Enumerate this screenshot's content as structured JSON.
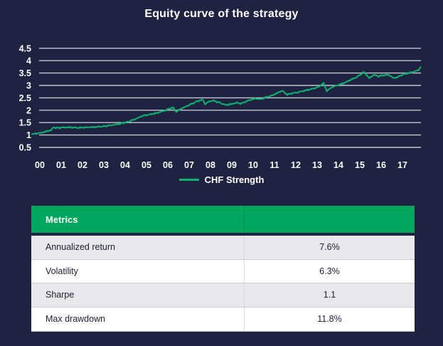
{
  "page": {
    "background": "#1f2240"
  },
  "chart_data": {
    "type": "line",
    "title": "Equity curve of the strategy",
    "xlabel": "",
    "ylabel": "",
    "x_tick_labels": [
      "00",
      "01",
      "02",
      "03",
      "04",
      "05",
      "06",
      "07",
      "08",
      "09",
      "10",
      "11",
      "12",
      "13",
      "14",
      "15",
      "16",
      "17"
    ],
    "y_ticks": [
      4.5,
      4,
      3.5,
      3,
      2.5,
      2,
      1.5,
      1,
      0.5
    ],
    "y_range": [
      0.5,
      4.5
    ],
    "x_unit": "years since 2000",
    "grid": true,
    "grid_color": "#c6c8d2",
    "legend_position": "bottom-center",
    "series": [
      {
        "name": "CHF Strength",
        "color": "#0db170",
        "points": [
          [
            -0.37,
            1.03
          ],
          [
            -0.15,
            1.06
          ],
          [
            0,
            1.08
          ],
          [
            0.2,
            1.12
          ],
          [
            0.45,
            1.18
          ],
          [
            0.55,
            1.19
          ],
          [
            0.62,
            1.31
          ],
          [
            0.8,
            1.28
          ],
          [
            1.0,
            1.3
          ],
          [
            1.4,
            1.31
          ],
          [
            1.8,
            1.29
          ],
          [
            2.2,
            1.31
          ],
          [
            2.6,
            1.32
          ],
          [
            3.0,
            1.35
          ],
          [
            3.4,
            1.4
          ],
          [
            3.8,
            1.46
          ],
          [
            4.2,
            1.55
          ],
          [
            4.5,
            1.65
          ],
          [
            4.8,
            1.77
          ],
          [
            5.1,
            1.82
          ],
          [
            5.45,
            1.88
          ],
          [
            5.8,
            1.97
          ],
          [
            6.1,
            2.07
          ],
          [
            6.25,
            2.1
          ],
          [
            6.4,
            1.93
          ],
          [
            6.6,
            2.05
          ],
          [
            6.85,
            2.15
          ],
          [
            7.1,
            2.25
          ],
          [
            7.35,
            2.35
          ],
          [
            7.63,
            2.43
          ],
          [
            7.75,
            2.25
          ],
          [
            7.95,
            2.36
          ],
          [
            8.15,
            2.38
          ],
          [
            8.45,
            2.3
          ],
          [
            8.7,
            2.21
          ],
          [
            9.0,
            2.25
          ],
          [
            9.2,
            2.3
          ],
          [
            9.45,
            2.27
          ],
          [
            9.8,
            2.4
          ],
          [
            10.1,
            2.47
          ],
          [
            10.35,
            2.44
          ],
          [
            10.6,
            2.52
          ],
          [
            10.9,
            2.6
          ],
          [
            11.15,
            2.7
          ],
          [
            11.35,
            2.79
          ],
          [
            11.6,
            2.63
          ],
          [
            11.85,
            2.69
          ],
          [
            12.1,
            2.72
          ],
          [
            12.5,
            2.81
          ],
          [
            12.8,
            2.87
          ],
          [
            13.05,
            2.93
          ],
          [
            13.3,
            3.09
          ],
          [
            13.45,
            2.78
          ],
          [
            13.7,
            2.93
          ],
          [
            14.0,
            3.02
          ],
          [
            14.3,
            3.11
          ],
          [
            14.6,
            3.24
          ],
          [
            14.85,
            3.33
          ],
          [
            15.05,
            3.45
          ],
          [
            15.2,
            3.54
          ],
          [
            15.45,
            3.29
          ],
          [
            15.65,
            3.43
          ],
          [
            15.85,
            3.37
          ],
          [
            16.1,
            3.41
          ],
          [
            16.35,
            3.43
          ],
          [
            16.6,
            3.29
          ],
          [
            16.8,
            3.35
          ],
          [
            17.05,
            3.45
          ],
          [
            17.35,
            3.51
          ],
          [
            17.6,
            3.57
          ],
          [
            17.75,
            3.62
          ],
          [
            17.85,
            3.74
          ]
        ]
      }
    ]
  },
  "table": {
    "header": "Metrics",
    "header_bg": "#00a55e",
    "header_text_color": "#ffffff",
    "row_bg_odd": "#e8e8eb",
    "row_bg_even": "#ffffff",
    "text_color": "#1c1e33",
    "rows": [
      {
        "label": "Annualized return",
        "value": "7.6%"
      },
      {
        "label": "Volatility",
        "value": "6.3%"
      },
      {
        "label": "Sharpe",
        "value": "1.1"
      },
      {
        "label": "Max drawdown",
        "value": "11.8%"
      }
    ]
  }
}
